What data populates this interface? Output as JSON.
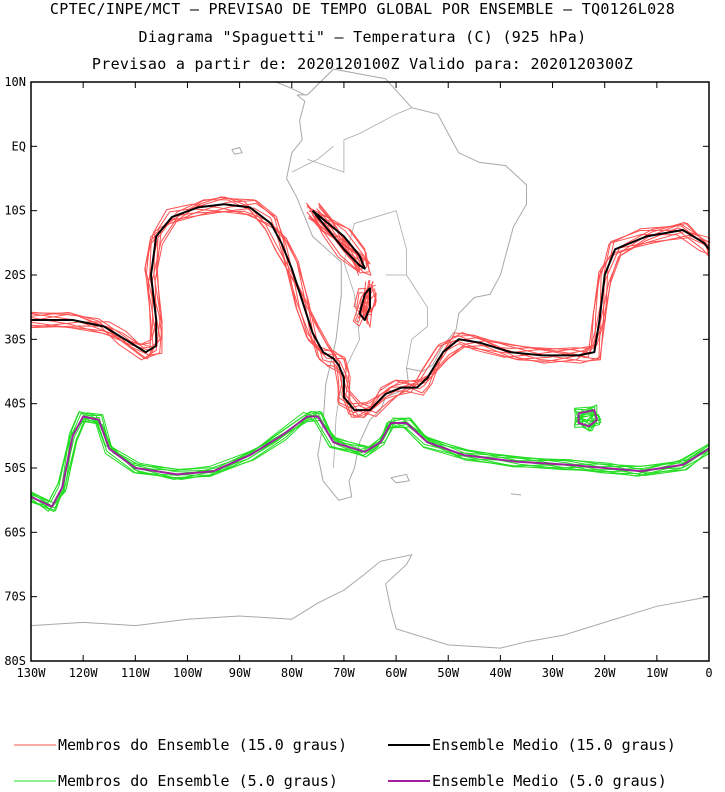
{
  "titles": {
    "line1": "CPTEC/INPE/MCT – PREVISAO DE TEMPO GLOBAL POR ENSEMBLE – TQ0126L028",
    "line2": "Diagrama \"Spaguetti\" – Temperatura (C) (925 hPa)",
    "line3": "Previsao a partir de: 2020120100Z  Valido para: 2020120300Z"
  },
  "chart_data": {
    "type": "line",
    "subtype": "spaghetti-map",
    "xlim": [
      -130,
      0
    ],
    "ylim": [
      -80,
      10
    ],
    "xticks": [
      {
        "v": -130,
        "label": "130W"
      },
      {
        "v": -120,
        "label": "120W"
      },
      {
        "v": -110,
        "label": "110W"
      },
      {
        "v": -100,
        "label": "100W"
      },
      {
        "v": -90,
        "label": "90W"
      },
      {
        "v": -80,
        "label": "80W"
      },
      {
        "v": -70,
        "label": "70W"
      },
      {
        "v": -60,
        "label": "60W"
      },
      {
        "v": -50,
        "label": "50W"
      },
      {
        "v": -40,
        "label": "40W"
      },
      {
        "v": -30,
        "label": "30W"
      },
      {
        "v": -20,
        "label": "20W"
      },
      {
        "v": -10,
        "label": "10W"
      },
      {
        "v": 0,
        "label": "0"
      }
    ],
    "yticks": [
      {
        "v": 10,
        "label": "10N"
      },
      {
        "v": 0,
        "label": "EQ"
      },
      {
        "v": -10,
        "label": "10S"
      },
      {
        "v": -20,
        "label": "20S"
      },
      {
        "v": -30,
        "label": "30S"
      },
      {
        "v": -40,
        "label": "40S"
      },
      {
        "v": -50,
        "label": "50S"
      },
      {
        "v": -60,
        "label": "60S"
      },
      {
        "v": -70,
        "label": "70S"
      },
      {
        "v": -80,
        "label": "80S"
      }
    ],
    "colors": {
      "members15": "#ff5050",
      "mean15": "#000000",
      "members5": "#22dd22",
      "mean5": "#a020a0",
      "coast": "#a8a8a8"
    },
    "series": [
      {
        "name": "Ensemble Medio (15.0 graus)",
        "role": "mean15",
        "segments": [
          [
            [
              -130,
              -27
            ],
            [
              -122,
              -27
            ],
            [
              -116,
              -28
            ],
            [
              -112,
              -30
            ],
            [
              -108,
              -32
            ],
            [
              -106,
              -31
            ],
            [
              -106,
              -27
            ],
            [
              -107,
              -20
            ],
            [
              -106,
              -14
            ],
            [
              -103,
              -11
            ],
            [
              -98,
              -9.5
            ],
            [
              -93,
              -9
            ],
            [
              -88,
              -9.5
            ],
            [
              -84,
              -12
            ],
            [
              -82,
              -15
            ],
            [
              -80,
              -19
            ],
            [
              -78,
              -24
            ],
            [
              -76,
              -29
            ],
            [
              -74,
              -32
            ],
            [
              -72,
              -33
            ],
            [
              -71,
              -34
            ],
            [
              -70,
              -36
            ],
            [
              -70,
              -39
            ],
            [
              -68,
              -41
            ],
            [
              -65,
              -41
            ],
            [
              -62,
              -38.5
            ],
            [
              -59,
              -37.5
            ],
            [
              -56,
              -37.5
            ],
            [
              -54,
              -36
            ],
            [
              -51,
              -32
            ],
            [
              -48,
              -30
            ],
            [
              -44,
              -30.5
            ],
            [
              -38,
              -32
            ],
            [
              -32,
              -32.5
            ],
            [
              -25,
              -32.5
            ],
            [
              -22,
              -32
            ],
            [
              -21,
              -27
            ],
            [
              -20,
              -20
            ],
            [
              -18,
              -16
            ],
            [
              -12,
              -14
            ],
            [
              -5,
              -13
            ],
            [
              -1,
              -15
            ],
            [
              0,
              -16
            ]
          ],
          [
            [
              -76,
              -10
            ],
            [
              -73,
              -13
            ],
            [
              -70,
              -16
            ],
            [
              -67,
              -18.5
            ],
            [
              -66,
              -19
            ],
            [
              -67,
              -17
            ],
            [
              -70,
              -14
            ],
            [
              -73,
              -12
            ],
            [
              -76,
              -10
            ]
          ],
          [
            [
              -65,
              -22
            ],
            [
              -65,
              -25
            ],
            [
              -66,
              -27
            ],
            [
              -67,
              -26
            ],
            [
              -66,
              -23
            ],
            [
              -65,
              -22
            ]
          ]
        ]
      },
      {
        "name": "Ensemble Medio (5.0 graus)",
        "role": "mean5",
        "segments": [
          [
            [
              -130,
              -54.5
            ],
            [
              -126,
              -56
            ],
            [
              -124,
              -53
            ],
            [
              -122,
              -45
            ],
            [
              -120,
              -42
            ],
            [
              -117,
              -42.5
            ],
            [
              -115,
              -47
            ],
            [
              -110,
              -50
            ],
            [
              -102,
              -51
            ],
            [
              -95,
              -50.5
            ],
            [
              -88,
              -48
            ],
            [
              -82,
              -45
            ],
            [
              -77,
              -42
            ],
            [
              -75,
              -42
            ],
            [
              -72,
              -46
            ],
            [
              -66,
              -47.5
            ],
            [
              -63,
              -46
            ],
            [
              -61,
              -43
            ],
            [
              -58,
              -43
            ],
            [
              -54,
              -46
            ],
            [
              -47,
              -48
            ],
            [
              -37,
              -49
            ],
            [
              -27,
              -49.5
            ],
            [
              -20,
              -50
            ],
            [
              -13,
              -50.5
            ],
            [
              -5,
              -49.5
            ],
            [
              0,
              -47
            ]
          ],
          [
            [
              -25,
              -41.5
            ],
            [
              -22,
              -41
            ],
            [
              -21.5,
              -42.5
            ],
            [
              -23,
              -43.5
            ],
            [
              -25,
              -43
            ],
            [
              -25,
              -41.5
            ]
          ]
        ]
      },
      {
        "name": "Membros do Ensemble (15.0 graus)",
        "role": "members15",
        "count": 10
      },
      {
        "name": "Membros do Ensemble (5.0 graus)",
        "role": "members5",
        "count": 10
      }
    ]
  },
  "legend": {
    "members15": "Membros do Ensemble (15.0 graus)",
    "mean15": "Ensemble Medio (15.0 graus)",
    "members5": "Membros do Ensemble (5.0 graus)",
    "mean5": "Ensemble Medio (5.0 graus)"
  }
}
